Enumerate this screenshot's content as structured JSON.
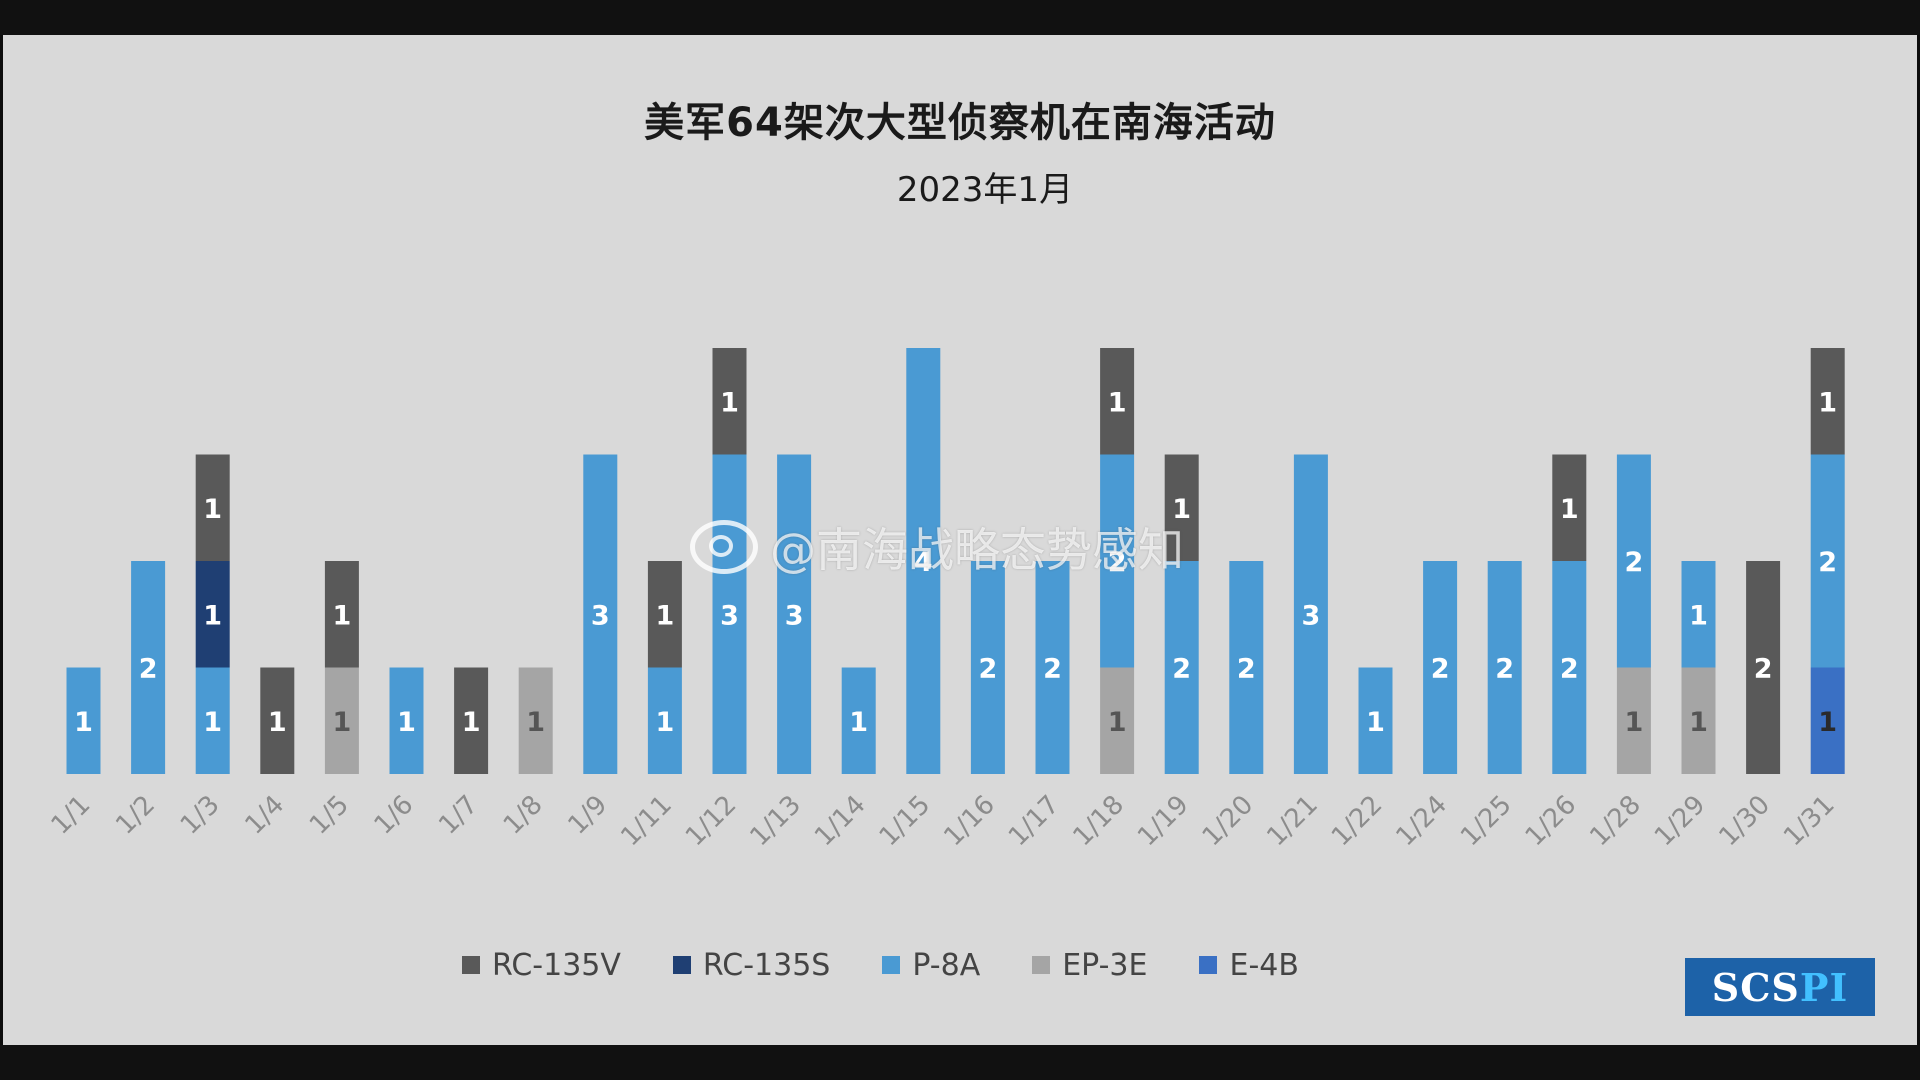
{
  "title": "美军64架次大型侦察机在南海活动",
  "subtitle": "2023年1月",
  "watermark": "@南海战略态势感知",
  "logo": {
    "part1": "SCS",
    "part2": "PI"
  },
  "legend": [
    {
      "name": "RC-135V",
      "color": "#595959"
    },
    {
      "name": "RC-135S",
      "color": "#1f3f73"
    },
    {
      "name": "P-8A",
      "color": "#4a9ad3"
    },
    {
      "name": "EP-3E",
      "color": "#a5a5a5"
    },
    {
      "name": "E-4B",
      "color": "#3a70c4"
    }
  ],
  "chart_data": {
    "type": "bar",
    "stacked": true,
    "title": "美军64架次大型侦察机在南海活动",
    "subtitle": "2023年1月",
    "categories": [
      "1/1",
      "1/2",
      "1/3",
      "1/4",
      "1/5",
      "1/6",
      "1/7",
      "1/8",
      "1/9",
      "1/11",
      "1/12",
      "1/13",
      "1/14",
      "1/15",
      "1/16",
      "1/17",
      "1/18",
      "1/19",
      "1/20",
      "1/21",
      "1/22",
      "1/24",
      "1/25",
      "1/26",
      "1/28",
      "1/29",
      "1/30",
      "1/31"
    ],
    "series": [
      {
        "name": "E-4B",
        "color": "#3a70c4",
        "labelColor": "#2a2a2a",
        "values": [
          0,
          0,
          0,
          0,
          0,
          0,
          0,
          0,
          0,
          0,
          0,
          0,
          0,
          0,
          0,
          0,
          0,
          0,
          0,
          0,
          0,
          0,
          0,
          0,
          0,
          0,
          0,
          1
        ]
      },
      {
        "name": "EP-3E",
        "color": "#a5a5a5",
        "labelColor": "#555555",
        "values": [
          0,
          0,
          0,
          0,
          1,
          0,
          0,
          1,
          0,
          0,
          0,
          0,
          0,
          0,
          0,
          0,
          1,
          0,
          0,
          0,
          0,
          0,
          0,
          0,
          1,
          1,
          0,
          0
        ]
      },
      {
        "name": "P-8A",
        "color": "#4a9ad3",
        "labelColor": "#ffffff",
        "values": [
          1,
          2,
          1,
          0,
          0,
          1,
          0,
          0,
          3,
          1,
          3,
          3,
          1,
          4,
          2,
          2,
          2,
          2,
          2,
          3,
          1,
          2,
          2,
          2,
          2,
          1,
          0,
          2
        ]
      },
      {
        "name": "RC-135S",
        "color": "#1f3f73",
        "labelColor": "#ffffff",
        "values": [
          0,
          0,
          1,
          0,
          0,
          0,
          0,
          0,
          0,
          0,
          0,
          0,
          0,
          0,
          0,
          0,
          0,
          0,
          0,
          0,
          0,
          0,
          0,
          0,
          0,
          0,
          0,
          0
        ]
      },
      {
        "name": "RC-135V",
        "color": "#595959",
        "labelColor": "#ffffff",
        "values": [
          0,
          0,
          1,
          1,
          1,
          0,
          1,
          0,
          0,
          1,
          1,
          0,
          0,
          0,
          0,
          0,
          1,
          1,
          0,
          0,
          0,
          0,
          0,
          1,
          0,
          0,
          2,
          1
        ]
      }
    ],
    "ylim": [
      0,
      4
    ],
    "grid": false,
    "legend_position": "bottom"
  }
}
